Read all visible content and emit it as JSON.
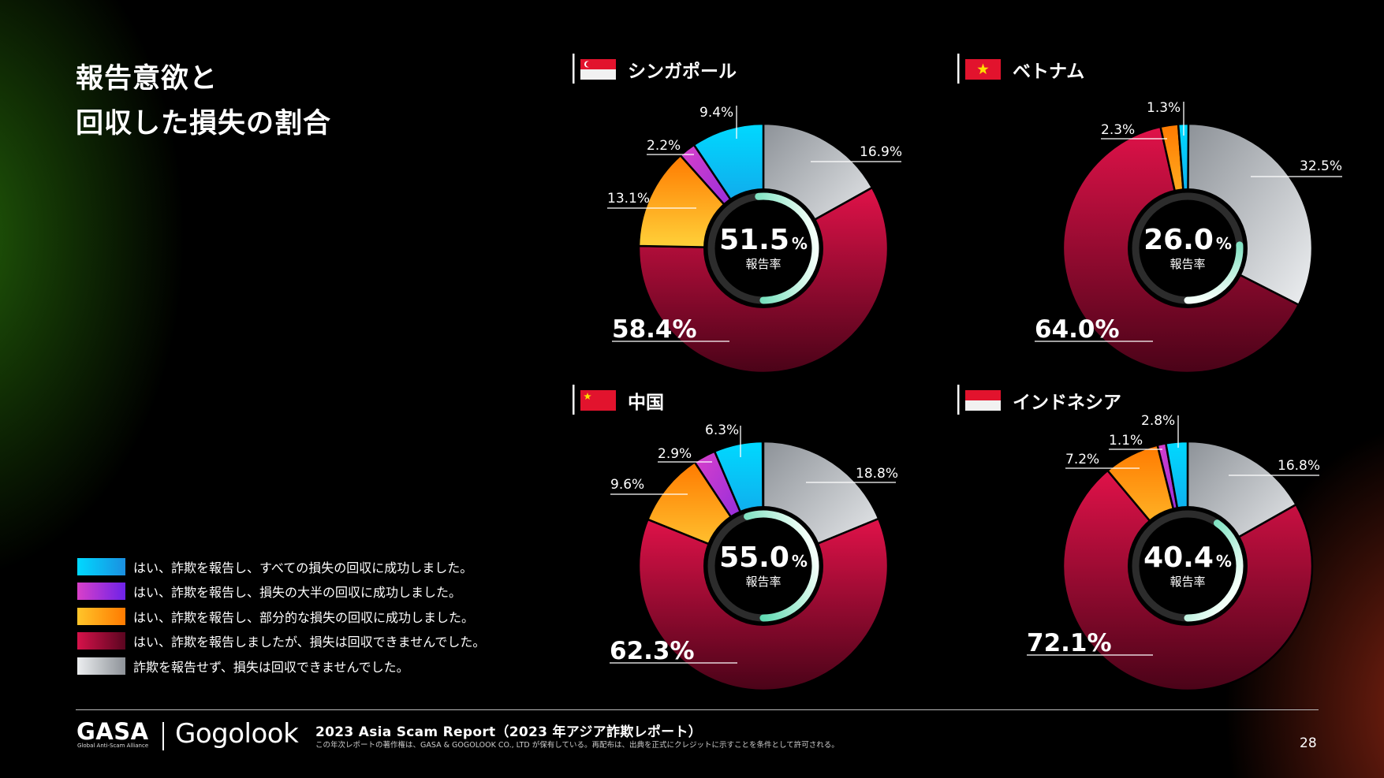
{
  "page": {
    "title_line1": "報告意欲と",
    "title_line2": "回収した損失の割合",
    "page_number": "28"
  },
  "legend": [
    {
      "label": "はい、詐欺を報告し、すべての損失の回収に成功しました。",
      "color": "#12b4ea"
    },
    {
      "label": "はい、詐欺を報告し、損失の大半の回収に成功しました。",
      "color": "#a02cd6"
    },
    {
      "label": "はい、詐欺を報告し、部分的な損失の回収に成功しました。",
      "color": "#ff9c1a"
    },
    {
      "label": "はい、詐欺を報告しましたが、損失は回収できませんでした。",
      "color": "#c0113e"
    },
    {
      "label": "詐欺を報告せず、損失は回収できませんでした。",
      "color": "#c8cbd0"
    }
  ],
  "chart_data": [
    {
      "type": "pie",
      "country": "シンガポール",
      "flag": "singapore-flag",
      "center_value": "51.5",
      "center_unit": "%",
      "center_label": "報告率",
      "reporting_rate": 51.5,
      "segments": [
        {
          "category": "not_reported",
          "value": 16.9,
          "label": "16.9%"
        },
        {
          "category": "no_recovery",
          "value": 58.4,
          "label": "58.4%"
        },
        {
          "category": "partial",
          "value": 13.1,
          "label": "13.1%"
        },
        {
          "category": "most",
          "value": 2.2,
          "label": "2.2%"
        },
        {
          "category": "all",
          "value": 9.4,
          "label": "9.4%"
        }
      ]
    },
    {
      "type": "pie",
      "country": "ベトナム",
      "flag": "vietnam-flag",
      "center_value": "26.0",
      "center_unit": "%",
      "center_label": "報告率",
      "reporting_rate": 26.0,
      "segments": [
        {
          "category": "not_reported",
          "value": 32.5,
          "label": "32.5%"
        },
        {
          "category": "no_recovery",
          "value": 64.0,
          "label": "64.0%"
        },
        {
          "category": "partial",
          "value": 2.3,
          "label": "2.3%"
        },
        {
          "category": "most",
          "value": 0,
          "label": ""
        },
        {
          "category": "all",
          "value": 1.3,
          "label": "1.3%"
        }
      ]
    },
    {
      "type": "pie",
      "country": "中国",
      "flag": "china-flag",
      "center_value": "55.0",
      "center_unit": "%",
      "center_label": "報告率",
      "reporting_rate": 55.0,
      "segments": [
        {
          "category": "not_reported",
          "value": 18.8,
          "label": "18.8%"
        },
        {
          "category": "no_recovery",
          "value": 62.3,
          "label": "62.3%"
        },
        {
          "category": "partial",
          "value": 9.6,
          "label": "9.6%"
        },
        {
          "category": "most",
          "value": 2.9,
          "label": "2.9%"
        },
        {
          "category": "all",
          "value": 6.3,
          "label": "6.3%"
        }
      ]
    },
    {
      "type": "pie",
      "country": "インドネシア",
      "flag": "indonesia-flag",
      "center_value": "40.4",
      "center_unit": "%",
      "center_label": "報告率",
      "reporting_rate": 40.4,
      "segments": [
        {
          "category": "not_reported",
          "value": 16.8,
          "label": "16.8%"
        },
        {
          "category": "no_recovery",
          "value": 72.1,
          "label": "72.1%"
        },
        {
          "category": "partial",
          "value": 7.2,
          "label": "7.2%"
        },
        {
          "category": "most",
          "value": 1.1,
          "label": "1.1%"
        },
        {
          "category": "all",
          "value": 2.8,
          "label": "2.8%"
        }
      ]
    }
  ],
  "footer": {
    "brand1": "GASA",
    "brand1_sub": "Global Anti-Scam Alliance",
    "brand2": "Gogolook",
    "report_title": "2023 Asia Scam Report（2023 年アジア詐欺レポート）",
    "copyright": "この年次レポートの著作権は、GASA & GOGOLOOK CO., LTD が保有している。再配布は、出典を正式にクレジットに示すことを条件として許可される。"
  }
}
